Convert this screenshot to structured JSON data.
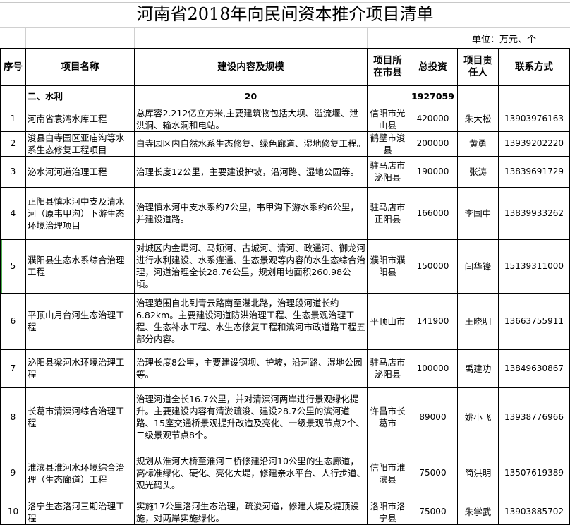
{
  "title": "河南省2018年向民间资本推介项目清单",
  "unit": "单位：万元、个",
  "headers": [
    "序号",
    "项目名称",
    "建设内容及规模",
    "项目所在市县",
    "总投资",
    "项目责任人",
    "联系方式"
  ],
  "section": {
    "name": "二、水利",
    "count": "20",
    "total": "1927059"
  },
  "rows": [
    {
      "no": "1",
      "name": "河南省袁湾水库工程",
      "content": "总库容2.212亿立方米,主要建筑物包括大坝、溢流堰、泄洪洞、输水洞和电站。",
      "location": "信阳市光山县",
      "investment": "420000",
      "person": "朱大松",
      "phone": "13903976163"
    },
    {
      "no": "2",
      "name": "浚县白寺园区亚庙沟等水系生态修复工程项目",
      "content": "白寺园区内自然水系生态修复、绿色廊道、湿地修复工程。",
      "location": "鹤壁市浚县",
      "investment": "200000",
      "person": "黄勇",
      "phone": "13939202220"
    },
    {
      "no": "3",
      "name": "泌水河河道治理工程",
      "content": "治理长度12公里，主要建设护坡，沿河路、湿地公园等。",
      "location": "驻马店市泌阳县",
      "investment": "190000",
      "person": "张涛",
      "phone": "13839691729"
    },
    {
      "no": "4",
      "name": "正阳县慎水河中支及清水河（原韦甲沟）下游生态环境治理项目",
      "content": "治理慎水河中支水系约7公里，韦甲沟下游水系约6公里，并建设道路。",
      "location": "驻马店市正阳县",
      "investment": "166000",
      "person": "李国中",
      "phone": "13839933262"
    },
    {
      "no": "5",
      "name": "濮阳县生态水系综合治理工程",
      "content": "对城区内金堤河、马颊河、古城河、清河、政通河、御龙河进行水利建设、水系连通、生态景观等内容的水生态综合治理，河道治理全长28.76公里，规划用地面积260.98公顷。",
      "location": "濮阳市濮阳县",
      "investment": "150000",
      "person": "闫华锋",
      "phone": "15139311000"
    },
    {
      "no": "6",
      "name": "平顶山月台河生态治理工程",
      "content": "治理范围自北到青云路南至湛北路，治理段河道长约6.82km。主要建设河道防洪治理工程、生态景观治理工程、生态补水工程、水生态修复工程和滨河市政道路工程五部分内容。",
      "location": "平顶山市",
      "investment": "141900",
      "person": "王晓明",
      "phone": "13663755911"
    },
    {
      "no": "7",
      "name": "泌阳县梁河水环境治理工程",
      "content": "治理长度8公里，主要建设钢坝、护坡，沿河路、湿地公园等。",
      "location": "驻马店市泌阳县",
      "investment": "100000",
      "person": "禹建功",
      "phone": "13849630867"
    },
    {
      "no": "8",
      "name": "长葛市清溟河综合治理工程",
      "content": "治理河道全长16.7公里，并对清溟河两岸进行景观绿化提升。主要建设内容有清淤疏浚、建设28.7公里的滨河道路、15座交通桥景观提升改造及亮化、一级景观节点2个、二级景观节点8个。",
      "location": "许昌市长葛市",
      "investment": "89000",
      "person": "姚小飞",
      "phone": "13938776966"
    },
    {
      "no": "9",
      "name": "淮滨县淮河水环境综合治理（生态廊道）工程",
      "content": "规划从淮河大桥至淮河二桥修建沿河10公里的生态廊道，高标准绿化、硬化、亮化大堤，修建亲水平台、人行步道、观光码头。",
      "location": "信阳市淮滨县",
      "investment": "75000",
      "person": "简洪明",
      "phone": "13507619389"
    },
    {
      "no": "10",
      "name": "洛宁生态洛河三期治理工程",
      "content": "实施17公里洛河生态治理，疏浚河道，修建大堤及堤顶设施，对两岸实施绿化。",
      "location": "洛阳市洛宁县",
      "investment": "75000",
      "person": "朱学武",
      "phone": "13903885702"
    }
  ]
}
